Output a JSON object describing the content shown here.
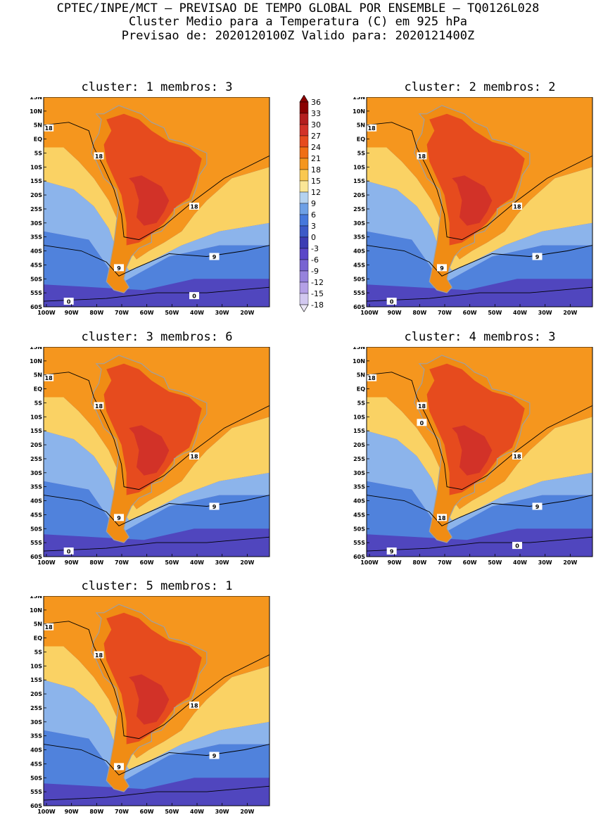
{
  "header": {
    "line1": "CPTEC/INPE/MCT – PREVISAO DE TEMPO GLOBAL POR ENSEMBLE – TQ0126L028",
    "line2": "Cluster Medio para a Temperatura (C) em 925 hPa",
    "line3": "Previsao de: 2020120100Z   Valido para: 2020121400Z"
  },
  "panels": [
    {
      "title": "cluster: 1  membros: 3",
      "contour_labels": [
        "18",
        "18",
        "18",
        "9",
        "9",
        "0",
        "0"
      ]
    },
    {
      "title": "cluster: 2  membros: 2",
      "contour_labels": [
        "18",
        "18",
        "18",
        "9",
        "9",
        "0"
      ]
    },
    {
      "title": "cluster: 3  membros: 6",
      "contour_labels": [
        "18",
        "18",
        "18",
        "9",
        "9",
        "0"
      ]
    },
    {
      "title": "cluster: 4  membros: 3",
      "contour_labels": [
        "18",
        "18",
        "18",
        "18",
        "9",
        "9",
        "0",
        "0"
      ]
    },
    {
      "title": "cluster: 5  membros: 1",
      "contour_labels": [
        "18",
        "18",
        "18",
        "9",
        "9"
      ]
    }
  ],
  "axes": {
    "lat_labels": [
      "15N",
      "10N",
      "5N",
      "EQ",
      "5S",
      "10S",
      "15S",
      "20S",
      "25S",
      "30S",
      "35S",
      "40S",
      "45S",
      "50S",
      "55S",
      "60S"
    ],
    "lon_labels": [
      "100W",
      "90W",
      "80W",
      "70W",
      "60W",
      "50W",
      "40W",
      "30W",
      "20W"
    ]
  },
  "colorbar": {
    "labels": [
      "36",
      "33",
      "30",
      "27",
      "24",
      "21",
      "18",
      "15",
      "12",
      "9",
      "6",
      "3",
      "0",
      "-3",
      "-6",
      "-9",
      "-12",
      "-15",
      "-18"
    ],
    "colors": [
      "#8b0000",
      "#b41e1e",
      "#d23228",
      "#e64b1e",
      "#f06e14",
      "#f5961e",
      "#fac850",
      "#fae696",
      "#b4d2f0",
      "#6ea0e6",
      "#4678dc",
      "#3c5ac8",
      "#3c3cb4",
      "#5a46c8",
      "#7864d2",
      "#9682dc",
      "#b4a0e6",
      "#d2c8f0"
    ]
  },
  "fill_colors": {
    "land_hot": "#e64b1e",
    "land_hotter": "#d23228",
    "land_core": "#c82d32",
    "orange": "#f5961e",
    "orange_mid": "#f08c14",
    "yellow": "#fad264",
    "light_blue": "#8cb4eb",
    "mid_blue": "#5082dc",
    "deep_blue": "#3c5ac8",
    "purple": "#5046be",
    "land_outline": "#a0a0a0",
    "contour": "#000000"
  }
}
